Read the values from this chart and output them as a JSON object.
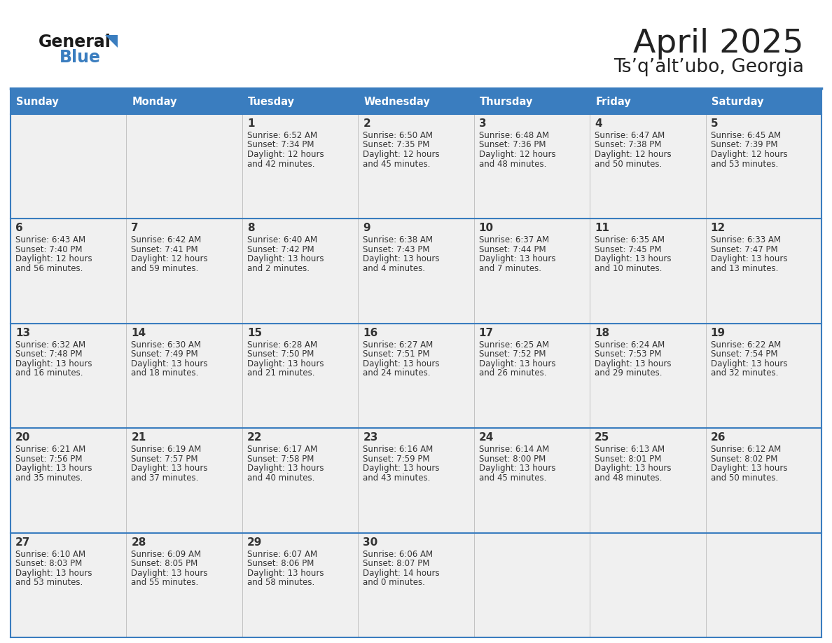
{
  "title": "April 2025",
  "subtitle": "Ts’q’alt’ubo, Georgia",
  "days_of_week": [
    "Sunday",
    "Monday",
    "Tuesday",
    "Wednesday",
    "Thursday",
    "Friday",
    "Saturday"
  ],
  "header_bg": "#3a7dbf",
  "header_text": "#ffffff",
  "cell_bg": "#f0f0f0",
  "border_color": "#3a7dbf",
  "text_color": "#333333",
  "title_color": "#222222",
  "calendar_data": [
    [
      {
        "day": "",
        "sunrise": "",
        "sunset": "",
        "daylight": ""
      },
      {
        "day": "",
        "sunrise": "",
        "sunset": "",
        "daylight": ""
      },
      {
        "day": "1",
        "sunrise": "Sunrise: 6:52 AM",
        "sunset": "Sunset: 7:34 PM",
        "daylight": "Daylight: 12 hours\nand 42 minutes."
      },
      {
        "day": "2",
        "sunrise": "Sunrise: 6:50 AM",
        "sunset": "Sunset: 7:35 PM",
        "daylight": "Daylight: 12 hours\nand 45 minutes."
      },
      {
        "day": "3",
        "sunrise": "Sunrise: 6:48 AM",
        "sunset": "Sunset: 7:36 PM",
        "daylight": "Daylight: 12 hours\nand 48 minutes."
      },
      {
        "day": "4",
        "sunrise": "Sunrise: 6:47 AM",
        "sunset": "Sunset: 7:38 PM",
        "daylight": "Daylight: 12 hours\nand 50 minutes."
      },
      {
        "day": "5",
        "sunrise": "Sunrise: 6:45 AM",
        "sunset": "Sunset: 7:39 PM",
        "daylight": "Daylight: 12 hours\nand 53 minutes."
      }
    ],
    [
      {
        "day": "6",
        "sunrise": "Sunrise: 6:43 AM",
        "sunset": "Sunset: 7:40 PM",
        "daylight": "Daylight: 12 hours\nand 56 minutes."
      },
      {
        "day": "7",
        "sunrise": "Sunrise: 6:42 AM",
        "sunset": "Sunset: 7:41 PM",
        "daylight": "Daylight: 12 hours\nand 59 minutes."
      },
      {
        "day": "8",
        "sunrise": "Sunrise: 6:40 AM",
        "sunset": "Sunset: 7:42 PM",
        "daylight": "Daylight: 13 hours\nand 2 minutes."
      },
      {
        "day": "9",
        "sunrise": "Sunrise: 6:38 AM",
        "sunset": "Sunset: 7:43 PM",
        "daylight": "Daylight: 13 hours\nand 4 minutes."
      },
      {
        "day": "10",
        "sunrise": "Sunrise: 6:37 AM",
        "sunset": "Sunset: 7:44 PM",
        "daylight": "Daylight: 13 hours\nand 7 minutes."
      },
      {
        "day": "11",
        "sunrise": "Sunrise: 6:35 AM",
        "sunset": "Sunset: 7:45 PM",
        "daylight": "Daylight: 13 hours\nand 10 minutes."
      },
      {
        "day": "12",
        "sunrise": "Sunrise: 6:33 AM",
        "sunset": "Sunset: 7:47 PM",
        "daylight": "Daylight: 13 hours\nand 13 minutes."
      }
    ],
    [
      {
        "day": "13",
        "sunrise": "Sunrise: 6:32 AM",
        "sunset": "Sunset: 7:48 PM",
        "daylight": "Daylight: 13 hours\nand 16 minutes."
      },
      {
        "day": "14",
        "sunrise": "Sunrise: 6:30 AM",
        "sunset": "Sunset: 7:49 PM",
        "daylight": "Daylight: 13 hours\nand 18 minutes."
      },
      {
        "day": "15",
        "sunrise": "Sunrise: 6:28 AM",
        "sunset": "Sunset: 7:50 PM",
        "daylight": "Daylight: 13 hours\nand 21 minutes."
      },
      {
        "day": "16",
        "sunrise": "Sunrise: 6:27 AM",
        "sunset": "Sunset: 7:51 PM",
        "daylight": "Daylight: 13 hours\nand 24 minutes."
      },
      {
        "day": "17",
        "sunrise": "Sunrise: 6:25 AM",
        "sunset": "Sunset: 7:52 PM",
        "daylight": "Daylight: 13 hours\nand 26 minutes."
      },
      {
        "day": "18",
        "sunrise": "Sunrise: 6:24 AM",
        "sunset": "Sunset: 7:53 PM",
        "daylight": "Daylight: 13 hours\nand 29 minutes."
      },
      {
        "day": "19",
        "sunrise": "Sunrise: 6:22 AM",
        "sunset": "Sunset: 7:54 PM",
        "daylight": "Daylight: 13 hours\nand 32 minutes."
      }
    ],
    [
      {
        "day": "20",
        "sunrise": "Sunrise: 6:21 AM",
        "sunset": "Sunset: 7:56 PM",
        "daylight": "Daylight: 13 hours\nand 35 minutes."
      },
      {
        "day": "21",
        "sunrise": "Sunrise: 6:19 AM",
        "sunset": "Sunset: 7:57 PM",
        "daylight": "Daylight: 13 hours\nand 37 minutes."
      },
      {
        "day": "22",
        "sunrise": "Sunrise: 6:17 AM",
        "sunset": "Sunset: 7:58 PM",
        "daylight": "Daylight: 13 hours\nand 40 minutes."
      },
      {
        "day": "23",
        "sunrise": "Sunrise: 6:16 AM",
        "sunset": "Sunset: 7:59 PM",
        "daylight": "Daylight: 13 hours\nand 43 minutes."
      },
      {
        "day": "24",
        "sunrise": "Sunrise: 6:14 AM",
        "sunset": "Sunset: 8:00 PM",
        "daylight": "Daylight: 13 hours\nand 45 minutes."
      },
      {
        "day": "25",
        "sunrise": "Sunrise: 6:13 AM",
        "sunset": "Sunset: 8:01 PM",
        "daylight": "Daylight: 13 hours\nand 48 minutes."
      },
      {
        "day": "26",
        "sunrise": "Sunrise: 6:12 AM",
        "sunset": "Sunset: 8:02 PM",
        "daylight": "Daylight: 13 hours\nand 50 minutes."
      }
    ],
    [
      {
        "day": "27",
        "sunrise": "Sunrise: 6:10 AM",
        "sunset": "Sunset: 8:03 PM",
        "daylight": "Daylight: 13 hours\nand 53 minutes."
      },
      {
        "day": "28",
        "sunrise": "Sunrise: 6:09 AM",
        "sunset": "Sunset: 8:05 PM",
        "daylight": "Daylight: 13 hours\nand 55 minutes."
      },
      {
        "day": "29",
        "sunrise": "Sunrise: 6:07 AM",
        "sunset": "Sunset: 8:06 PM",
        "daylight": "Daylight: 13 hours\nand 58 minutes."
      },
      {
        "day": "30",
        "sunrise": "Sunrise: 6:06 AM",
        "sunset": "Sunset: 8:07 PM",
        "daylight": "Daylight: 14 hours\nand 0 minutes."
      },
      {
        "day": "",
        "sunrise": "",
        "sunset": "",
        "daylight": ""
      },
      {
        "day": "",
        "sunrise": "",
        "sunset": "",
        "daylight": ""
      },
      {
        "day": "",
        "sunrise": "",
        "sunset": "",
        "daylight": ""
      }
    ]
  ]
}
